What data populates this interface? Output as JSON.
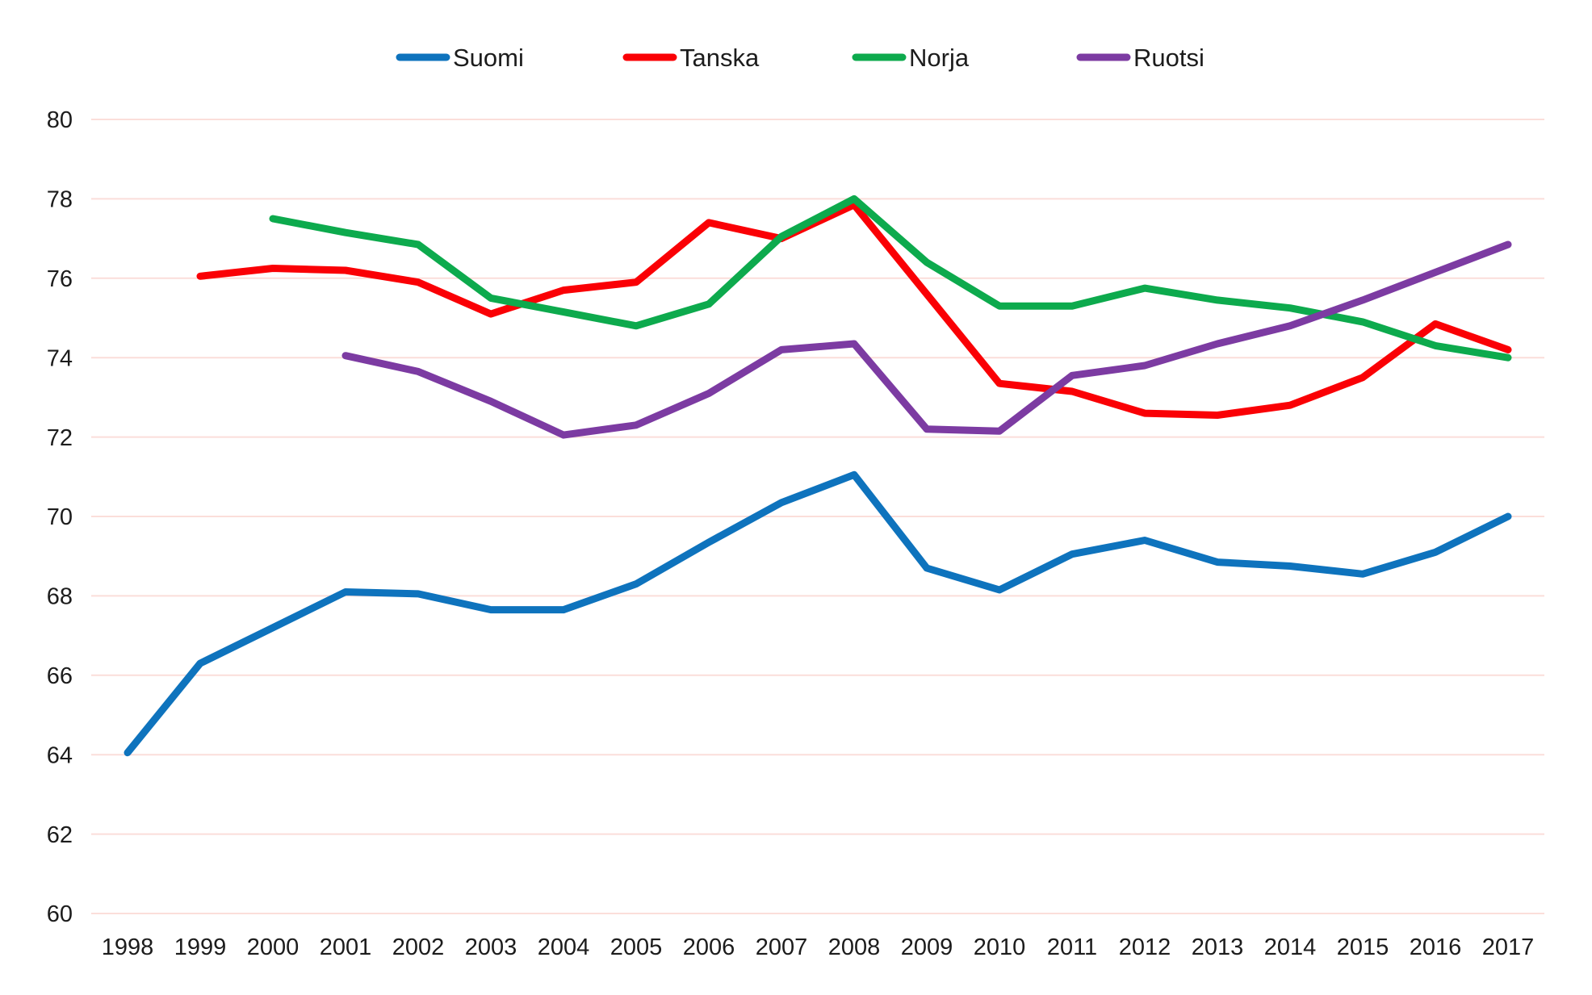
{
  "chart_data": {
    "type": "line",
    "title": "",
    "xlabel": "",
    "ylabel": "",
    "grid": "horizontal",
    "gridline_color": "#fbdeda",
    "text_color": "#1c1c1c",
    "background_color": "#ffffff",
    "legend_position": "top",
    "ylim": [
      60,
      80
    ],
    "yticks": [
      60,
      62,
      64,
      66,
      68,
      70,
      72,
      74,
      76,
      78,
      80
    ],
    "categories": [
      "1998",
      "1999",
      "2000",
      "2001",
      "2002",
      "2003",
      "2004",
      "2005",
      "2006",
      "2007",
      "2008",
      "2009",
      "2010",
      "2011",
      "2012",
      "2013",
      "2014",
      "2015",
      "2016",
      "2017"
    ],
    "series": [
      {
        "name": "Suomi",
        "color": "#0e73bd",
        "values": [
          64.05,
          66.3,
          67.2,
          68.1,
          68.05,
          67.65,
          67.65,
          68.3,
          69.35,
          70.35,
          71.05,
          68.7,
          68.15,
          69.05,
          69.4,
          68.85,
          68.75,
          68.55,
          69.1,
          70.0
        ]
      },
      {
        "name": "Tanska",
        "color": "#fa0005",
        "values": [
          null,
          76.05,
          76.25,
          76.2,
          75.9,
          75.1,
          75.7,
          75.9,
          77.4,
          77.0,
          77.85,
          75.6,
          73.35,
          73.15,
          72.6,
          72.55,
          72.8,
          73.5,
          74.85,
          74.2
        ]
      },
      {
        "name": "Norja",
        "color": "#0daa4d",
        "values": [
          null,
          null,
          77.5,
          77.15,
          76.85,
          75.5,
          75.15,
          74.8,
          75.35,
          77.05,
          78.0,
          76.4,
          75.3,
          75.3,
          75.75,
          75.45,
          75.25,
          74.9,
          74.3,
          74.0
        ]
      },
      {
        "name": "Ruotsi",
        "color": "#7c3ba2",
        "values": [
          null,
          null,
          null,
          74.05,
          73.65,
          72.9,
          72.05,
          72.3,
          73.1,
          74.2,
          74.35,
          72.2,
          72.15,
          73.55,
          73.8,
          74.35,
          74.8,
          75.45,
          76.15,
          76.85
        ]
      }
    ]
  }
}
